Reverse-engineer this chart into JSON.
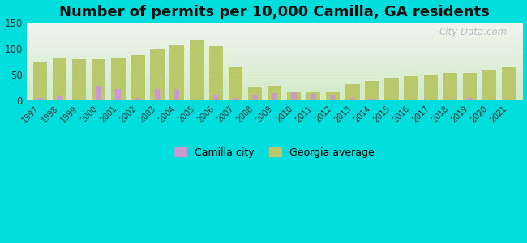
{
  "title": "Number of permits per 10,000 Camilla, GA residents",
  "years": [
    1997,
    1998,
    1999,
    2000,
    2001,
    2002,
    2003,
    2004,
    2005,
    2006,
    2007,
    2008,
    2009,
    2010,
    2011,
    2012,
    2013,
    2014,
    2015,
    2016,
    2017,
    2018,
    2019,
    2020,
    2021
  ],
  "camilla_city": [
    5,
    10,
    0,
    28,
    22,
    5,
    22,
    22,
    2,
    12,
    5,
    12,
    15,
    16,
    13,
    11,
    5,
    4,
    2,
    1,
    2,
    2,
    5,
    2,
    2
  ],
  "georgia_avg": [
    73,
    82,
    80,
    80,
    82,
    87,
    99,
    108,
    115,
    105,
    65,
    27,
    28,
    18,
    18,
    18,
    32,
    38,
    44,
    47,
    50,
    53,
    53,
    60,
    65
  ],
  "camilla_color": "#cc99cc",
  "georgia_color": "#b8c86a",
  "outer_bg": "#00dddd",
  "ylim": [
    0,
    150
  ],
  "yticks": [
    0,
    50,
    100,
    150
  ],
  "title_fontsize": 13,
  "watermark": "City-Data.com"
}
